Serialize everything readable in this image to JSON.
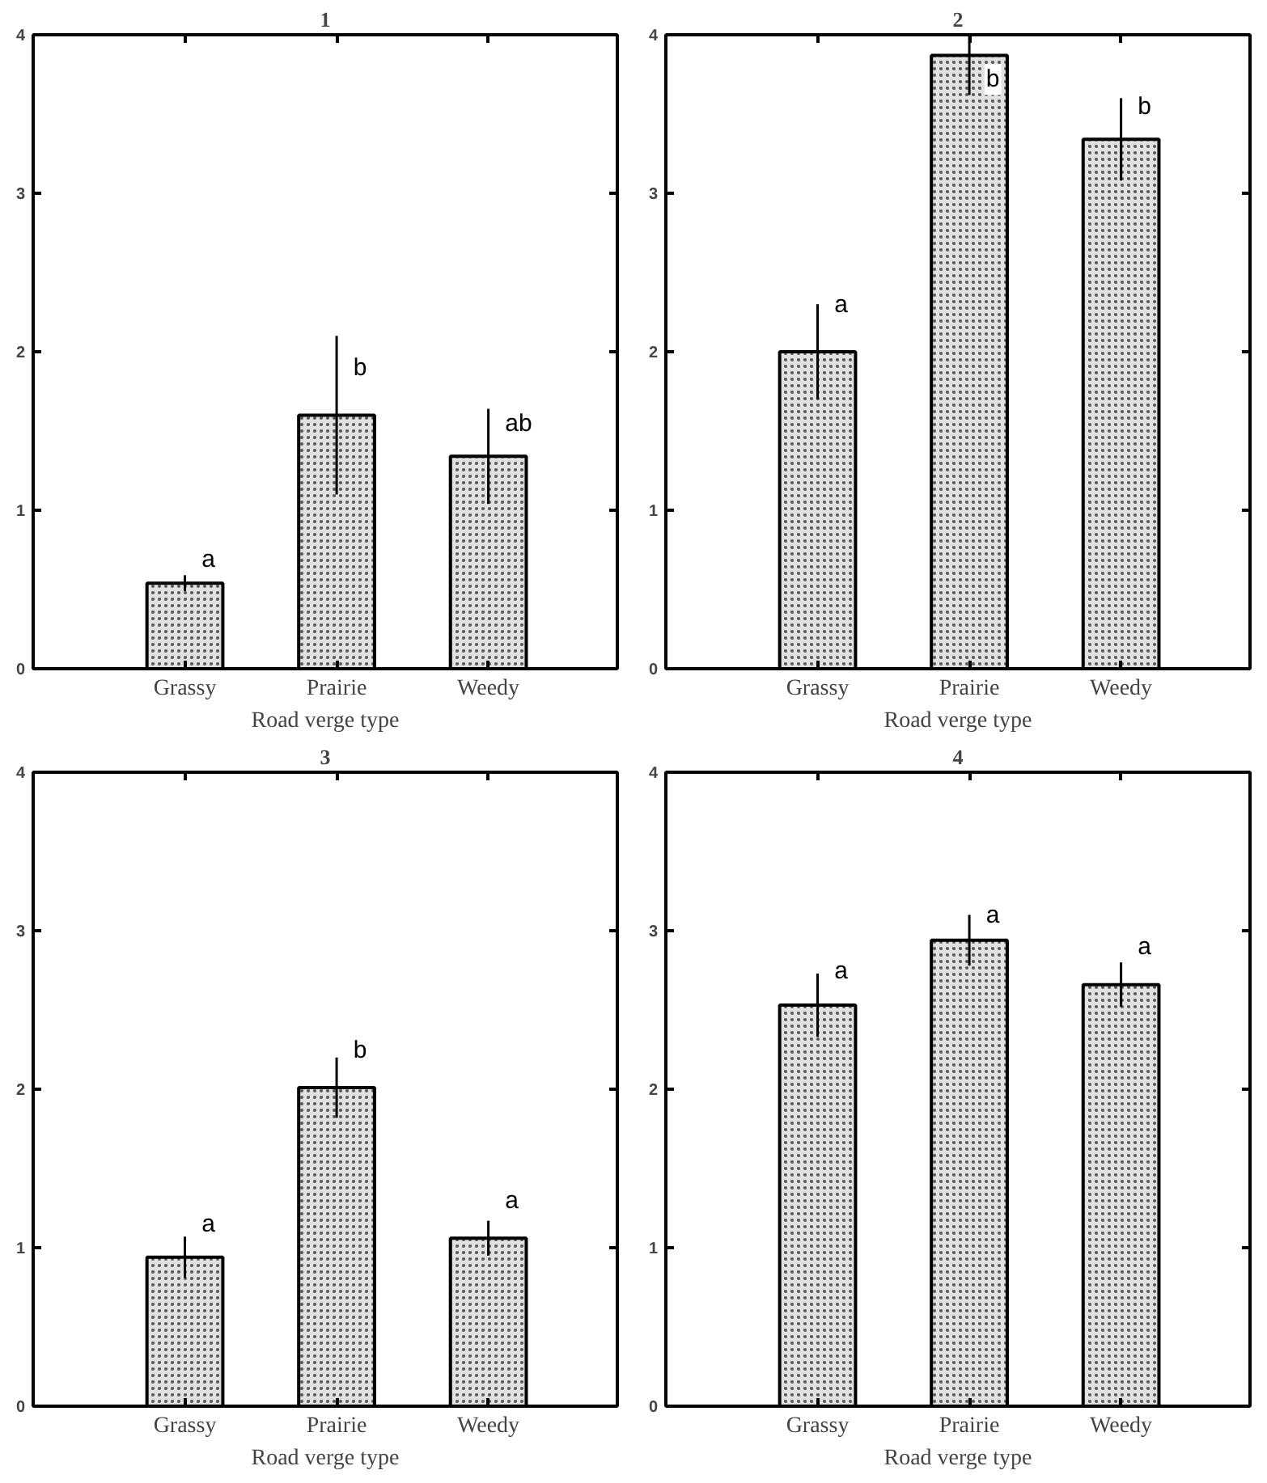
{
  "chart_data": [
    {
      "type": "bar",
      "title": "1",
      "xlabel": "Road verge type",
      "categories": [
        "Grassy",
        "Prairie",
        "Weedy"
      ],
      "values": [
        0.54,
        1.6,
        1.34
      ],
      "errors": [
        0.05,
        0.5,
        0.3
      ],
      "color": "#e0e0e0",
      "ylim": [
        0,
        4
      ],
      "yticks": [
        0,
        1,
        2,
        3,
        4
      ],
      "grid": false,
      "annotations": [
        {
          "text": "a",
          "x": "Grassy",
          "y": 0.59
        },
        {
          "text": "b",
          "x": "Prairie",
          "y": 1.8
        },
        {
          "text": "ab",
          "x": "Weedy",
          "y": 1.45
        }
      ]
    },
    {
      "type": "bar",
      "title": "2",
      "xlabel": "Road verge type",
      "categories": [
        "Grassy",
        "Prairie",
        "Weedy"
      ],
      "values": [
        2.0,
        3.87,
        3.34
      ],
      "errors": [
        0.3,
        [
          3.62,
          4.0
        ],
        0.26
      ],
      "color": "#e0e0e0",
      "ylim": [
        0,
        4
      ],
      "yticks": [
        0,
        1,
        2,
        3,
        4
      ],
      "grid": false,
      "annotations": [
        {
          "text": "a",
          "x": "Grassy",
          "y": 2.2
        },
        {
          "text": "b",
          "x": "Prairie",
          "y": 3.62
        },
        {
          "text": "b",
          "x": "Weedy",
          "y": 3.45
        }
      ]
    },
    {
      "type": "bar",
      "title": "3",
      "xlabel": "Road verge type",
      "categories": [
        "Grassy",
        "Prairie",
        "Weedy"
      ],
      "values": [
        0.94,
        2.01,
        1.06
      ],
      "errors": [
        0.13,
        0.19,
        0.11
      ],
      "color": "#e0e0e0",
      "ylim": [
        0,
        4
      ],
      "yticks": [
        0,
        1,
        2,
        3,
        4
      ],
      "grid": false,
      "annotations": [
        {
          "text": "a",
          "x": "Grassy",
          "y": 1.05
        },
        {
          "text": "b",
          "x": "Prairie",
          "y": 2.15
        },
        {
          "text": "a",
          "x": "Weedy",
          "y": 1.2
        }
      ]
    },
    {
      "type": "bar",
      "title": "4",
      "xlabel": "Road verge type",
      "categories": [
        "Grassy",
        "Prairie",
        "Weedy"
      ],
      "values": [
        2.53,
        2.94,
        2.66
      ],
      "errors": [
        0.2,
        0.16,
        0.14
      ],
      "color": "#e0e0e0",
      "ylim": [
        0,
        4
      ],
      "yticks": [
        0,
        1,
        2,
        3,
        4
      ],
      "grid": false,
      "annotations": [
        {
          "text": "a",
          "x": "Grassy",
          "y": 2.65
        },
        {
          "text": "a",
          "x": "Prairie",
          "y": 3.0
        },
        {
          "text": "a",
          "x": "Weedy",
          "y": 2.8
        }
      ]
    }
  ]
}
